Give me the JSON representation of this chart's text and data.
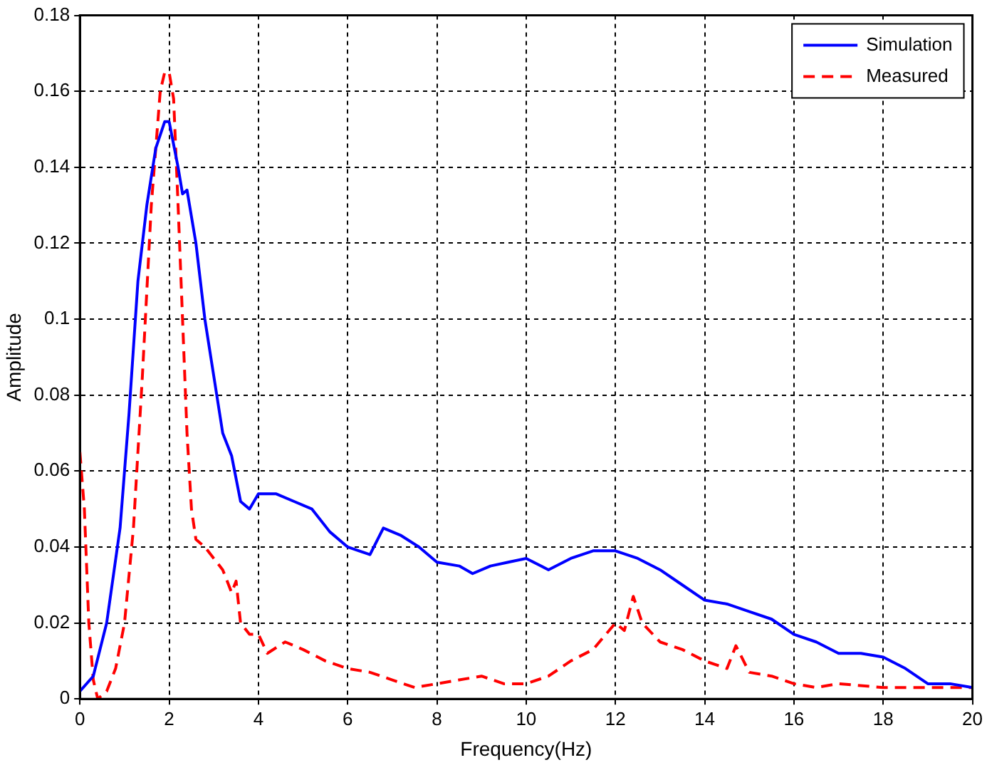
{
  "chart_data": {
    "type": "line",
    "xlabel": "Frequency(Hz)",
    "ylabel": "Amplitude",
    "xlim": [
      0,
      20
    ],
    "xticks": [
      0,
      2,
      4,
      6,
      8,
      10,
      12,
      14,
      16,
      18,
      20
    ],
    "ylim": [
      0,
      0.18
    ],
    "yticks": [
      0,
      0.02,
      0.04,
      0.06,
      0.08,
      0.1,
      0.12,
      0.14,
      0.16,
      0.18
    ],
    "grid": true,
    "legend": "top right",
    "marker": "none",
    "series": [
      {
        "name": "Simulation",
        "color": "#0000ff",
        "line_style": "solid",
        "x": [
          0,
          0.3,
          0.6,
          0.9,
          1.1,
          1.3,
          1.5,
          1.7,
          1.9,
          2.0,
          2.2,
          2.3,
          2.4,
          2.6,
          2.8,
          3.0,
          3.2,
          3.4,
          3.6,
          3.8,
          4.0,
          4.4,
          4.8,
          5.2,
          5.6,
          6.0,
          6.5,
          6.8,
          7.2,
          7.6,
          8.0,
          8.5,
          8.8,
          9.2,
          9.6,
          10,
          10.5,
          11,
          11.5,
          12,
          12.5,
          13,
          13.5,
          14,
          14.5,
          15,
          15.5,
          16,
          16.5,
          17,
          17.5,
          18,
          18.5,
          19,
          19.5,
          20
        ],
        "values": [
          0.002,
          0.006,
          0.02,
          0.045,
          0.075,
          0.11,
          0.13,
          0.145,
          0.152,
          0.152,
          0.14,
          0.133,
          0.134,
          0.12,
          0.1,
          0.085,
          0.07,
          0.064,
          0.052,
          0.05,
          0.054,
          0.054,
          0.052,
          0.05,
          0.044,
          0.04,
          0.038,
          0.045,
          0.043,
          0.04,
          0.036,
          0.035,
          0.033,
          0.035,
          0.036,
          0.037,
          0.034,
          0.037,
          0.039,
          0.039,
          0.037,
          0.034,
          0.03,
          0.026,
          0.025,
          0.023,
          0.021,
          0.017,
          0.015,
          0.012,
          0.012,
          0.011,
          0.008,
          0.004,
          0.004,
          0.003
        ]
      },
      {
        "name": "Measured",
        "color": "#ff0000",
        "line_style": "dashed",
        "x": [
          0,
          0.1,
          0.2,
          0.3,
          0.4,
          0.6,
          0.8,
          1.0,
          1.2,
          1.4,
          1.6,
          1.8,
          1.9,
          2.0,
          2.1,
          2.2,
          2.3,
          2.4,
          2.5,
          2.6,
          2.8,
          3.0,
          3.2,
          3.4,
          3.5,
          3.6,
          3.8,
          4.0,
          4.2,
          4.6,
          5.0,
          5.5,
          6,
          6.5,
          7,
          7.5,
          8,
          8.5,
          9,
          9.5,
          10,
          10.5,
          11,
          11.5,
          12,
          12.2,
          12.4,
          12.6,
          13,
          13.5,
          14,
          14.5,
          14.7,
          15,
          15.5,
          16,
          16.5,
          17,
          18,
          19,
          20
        ],
        "values": [
          0.065,
          0.05,
          0.02,
          0.005,
          0.0,
          0.002,
          0.008,
          0.02,
          0.045,
          0.085,
          0.13,
          0.16,
          0.165,
          0.165,
          0.158,
          0.13,
          0.1,
          0.07,
          0.05,
          0.042,
          0.04,
          0.037,
          0.034,
          0.028,
          0.031,
          0.02,
          0.017,
          0.017,
          0.012,
          0.015,
          0.013,
          0.01,
          0.008,
          0.007,
          0.005,
          0.003,
          0.004,
          0.005,
          0.006,
          0.004,
          0.004,
          0.006,
          0.01,
          0.013,
          0.02,
          0.018,
          0.027,
          0.02,
          0.015,
          0.013,
          0.01,
          0.008,
          0.014,
          0.007,
          0.006,
          0.004,
          0.003,
          0.004,
          0.003,
          0.003,
          0.003
        ]
      }
    ]
  }
}
